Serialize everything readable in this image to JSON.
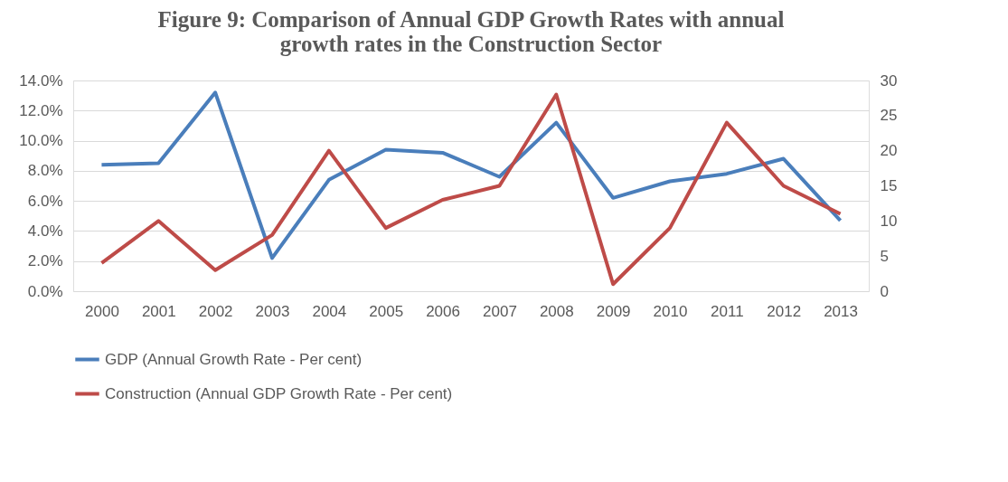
{
  "chart_data": {
    "type": "line",
    "title": [
      "Figure 9: Comparison of Annual GDP Growth Rates with annual",
      "growth rates in the Construction Sector"
    ],
    "categories": [
      "2000",
      "2001",
      "2002",
      "2003",
      "2004",
      "2005",
      "2006",
      "2007",
      "2008",
      "2009",
      "2010",
      "2011",
      "2012",
      "2013"
    ],
    "series": [
      {
        "name": "GDP (Annual Growth Rate - Per cent)",
        "color": "#4a7ebb",
        "values": [
          8.4,
          8.5,
          13.2,
          2.2,
          7.4,
          9.4,
          9.2,
          7.6,
          11.2,
          6.2,
          7.3,
          7.8,
          8.8,
          4.7
        ]
      },
      {
        "name": "Construction (Annual GDP Growth Rate - Per cent)",
        "color": "#be4b48",
        "axis": "y2",
        "values": [
          4,
          10,
          3,
          8,
          20,
          9,
          13,
          15,
          28,
          1,
          9,
          24,
          15,
          11
        ]
      }
    ],
    "ylim": [
      0,
      14
    ],
    "yticks": [
      {
        "value": 0,
        "label": "0.0%"
      },
      {
        "value": 2,
        "label": "2.0%"
      },
      {
        "value": 4,
        "label": "4.0%"
      },
      {
        "value": 6,
        "label": "6.0%"
      },
      {
        "value": 8,
        "label": "8.0%"
      },
      {
        "value": 10,
        "label": "10.0%"
      },
      {
        "value": 12,
        "label": "12.0%"
      },
      {
        "value": 14,
        "label": "14.0%"
      }
    ],
    "y2lim": [
      0,
      30
    ],
    "y2ticks": [
      0,
      5,
      10,
      15,
      20,
      25,
      30
    ],
    "grid": "y",
    "legend": "bottom",
    "marker": "none",
    "line_style": "solid"
  }
}
